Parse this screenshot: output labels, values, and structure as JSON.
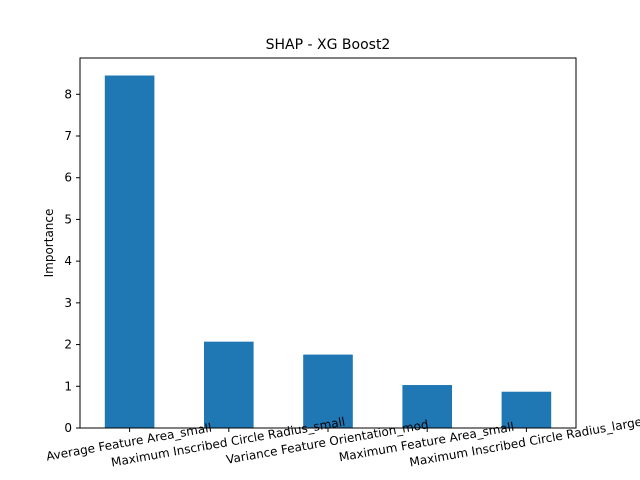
{
  "chart_data": {
    "type": "bar",
    "title": "SHAP - XG Boost2",
    "xlabel": "",
    "ylabel": "Importance",
    "categories": [
      "Average Feature Area_small",
      "Maximum Inscribed Circle Radius_small",
      "Variance Feature Orientation_mod",
      "Maximum Feature Area_small",
      "Maximum Inscribed Circle Radius_large"
    ],
    "values": [
      8.45,
      2.07,
      1.76,
      1.03,
      0.87
    ],
    "ylim": [
      0,
      8.87
    ],
    "yticks": [
      "0",
      "1",
      "2",
      "3",
      "4",
      "5",
      "6",
      "7",
      "8"
    ],
    "bar_color": "#1f77b4",
    "grid": false,
    "legend": "none"
  }
}
